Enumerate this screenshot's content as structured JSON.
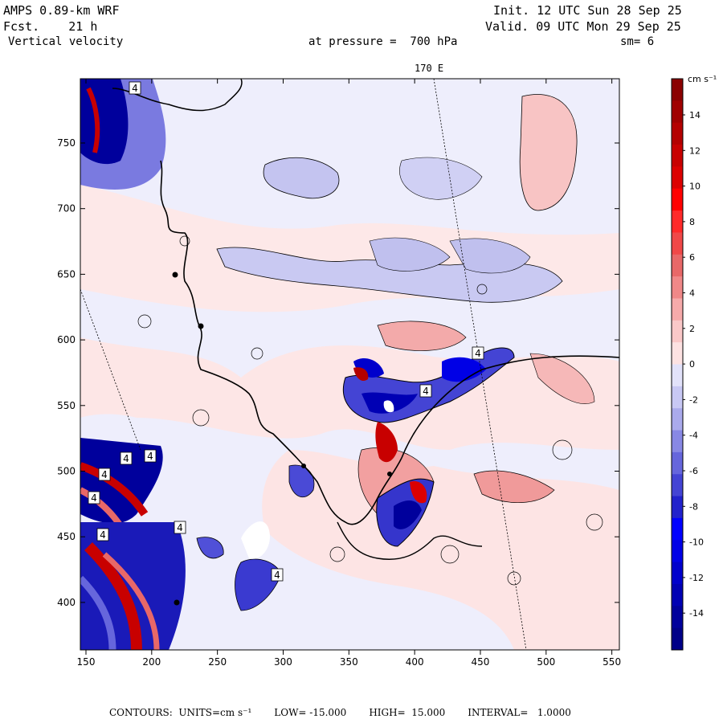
{
  "header": {
    "model": "AMPS 0.89-km WRF",
    "fcst_label": "Fcst.",
    "fcst_value": "21 h",
    "field": "Vertical velocity",
    "init": "Init. 12 UTC Sun 28 Sep 25",
    "valid": "Valid. 09 UTC Mon 29 Sep 25",
    "pressure": "at pressure =  700 hPa",
    "smoothing": "sm= 6",
    "meridian": "170 E"
  },
  "axes": {
    "x_ticks": [
      "150",
      "200",
      "250",
      "300",
      "350",
      "400",
      "450",
      "500",
      "550"
    ],
    "y_ticks": [
      "750",
      "700",
      "650",
      "600",
      "550",
      "500",
      "450",
      "400"
    ]
  },
  "colorbar": {
    "units": "cm s⁻¹",
    "labels": [
      "14",
      "12",
      "10",
      "8",
      "6",
      "4",
      "2",
      "0",
      "-2",
      "-4",
      "-6",
      "-8",
      "-10",
      "-12",
      "-14"
    ],
    "colors": [
      "#8b0000",
      "#a00000",
      "#b40000",
      "#c80000",
      "#dc0000",
      "#ff0000",
      "#ff2a2a",
      "#f04848",
      "#e86868",
      "#f08888",
      "#f6aaaa",
      "#fac8c8",
      "#fde2e2",
      "#e2e2fa",
      "#c8c8f4",
      "#aaaaec",
      "#8888e4",
      "#6666dc",
      "#4444d4",
      "#2222cc",
      "#0000ff",
      "#0000e6",
      "#0000cc",
      "#0000b4",
      "#00009c",
      "#000088"
    ]
  },
  "map": {
    "map_labels": [
      "4",
      "4",
      "4",
      "4",
      "4",
      "4",
      "4",
      "4",
      "4",
      "4"
    ]
  },
  "footer": {
    "contours": "CONTOURS:  UNITS=cm s⁻¹",
    "low": "LOW= -15.000",
    "high": "HIGH=  15.000",
    "interval": "INTERVAL=   1.0000"
  }
}
